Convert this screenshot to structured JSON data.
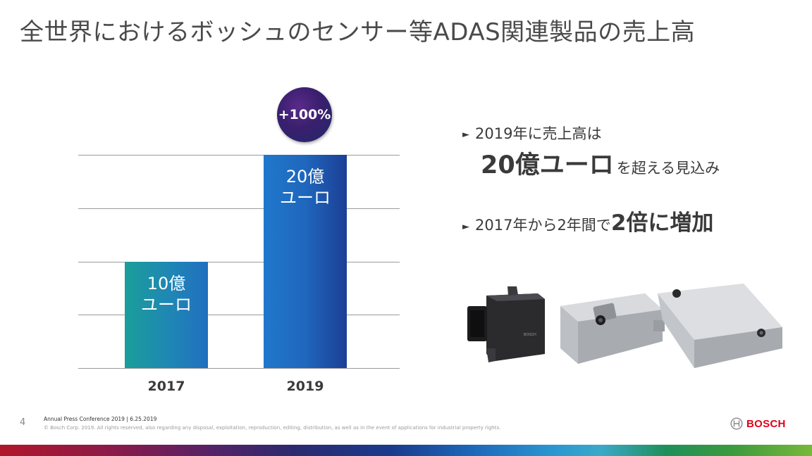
{
  "slide": {
    "title": "全世界におけるボッシュのセンサー等ADAS関連製品の売上高",
    "page_number": "4"
  },
  "chart_data": {
    "type": "bar",
    "categories": [
      "2017",
      "2019"
    ],
    "values": [
      1.0,
      2.0
    ],
    "bar_labels": [
      {
        "line1": "10億",
        "line2": "ユーロ"
      },
      {
        "line1": "20億",
        "line2": "ユーロ"
      }
    ],
    "ylim": [
      0,
      2.0
    ],
    "grid": true,
    "growth_badge": "+100%",
    "colors": {
      "bar_2017": "#1a9e9a",
      "bar_2019": "#1f67bd",
      "badge": "#3a1f6e"
    }
  },
  "bullets": [
    {
      "marker": "►",
      "text": "2019年に売上高は",
      "emphasis": "20億ユーロ",
      "after": "を超える見込み"
    },
    {
      "marker": "►",
      "text": "2017年から2年間で",
      "emphasis": "2倍に増加"
    }
  ],
  "products": [
    {
      "icon": "control-unit-image"
    },
    {
      "icon": "radar-sensor-image"
    },
    {
      "icon": "camera-sensor-image"
    }
  ],
  "footer": {
    "line1": "Annual Press Conference 2019 | 6.25.2019",
    "line2": "© Bosch Corp. 2019. All rights reserved, also regarding any disposal, exploitation, reproduction, editing, distribution, as well as in the event of applications for industrial property rights."
  },
  "brand": {
    "logo_text": "BOSCH",
    "color": "#e2001a"
  }
}
